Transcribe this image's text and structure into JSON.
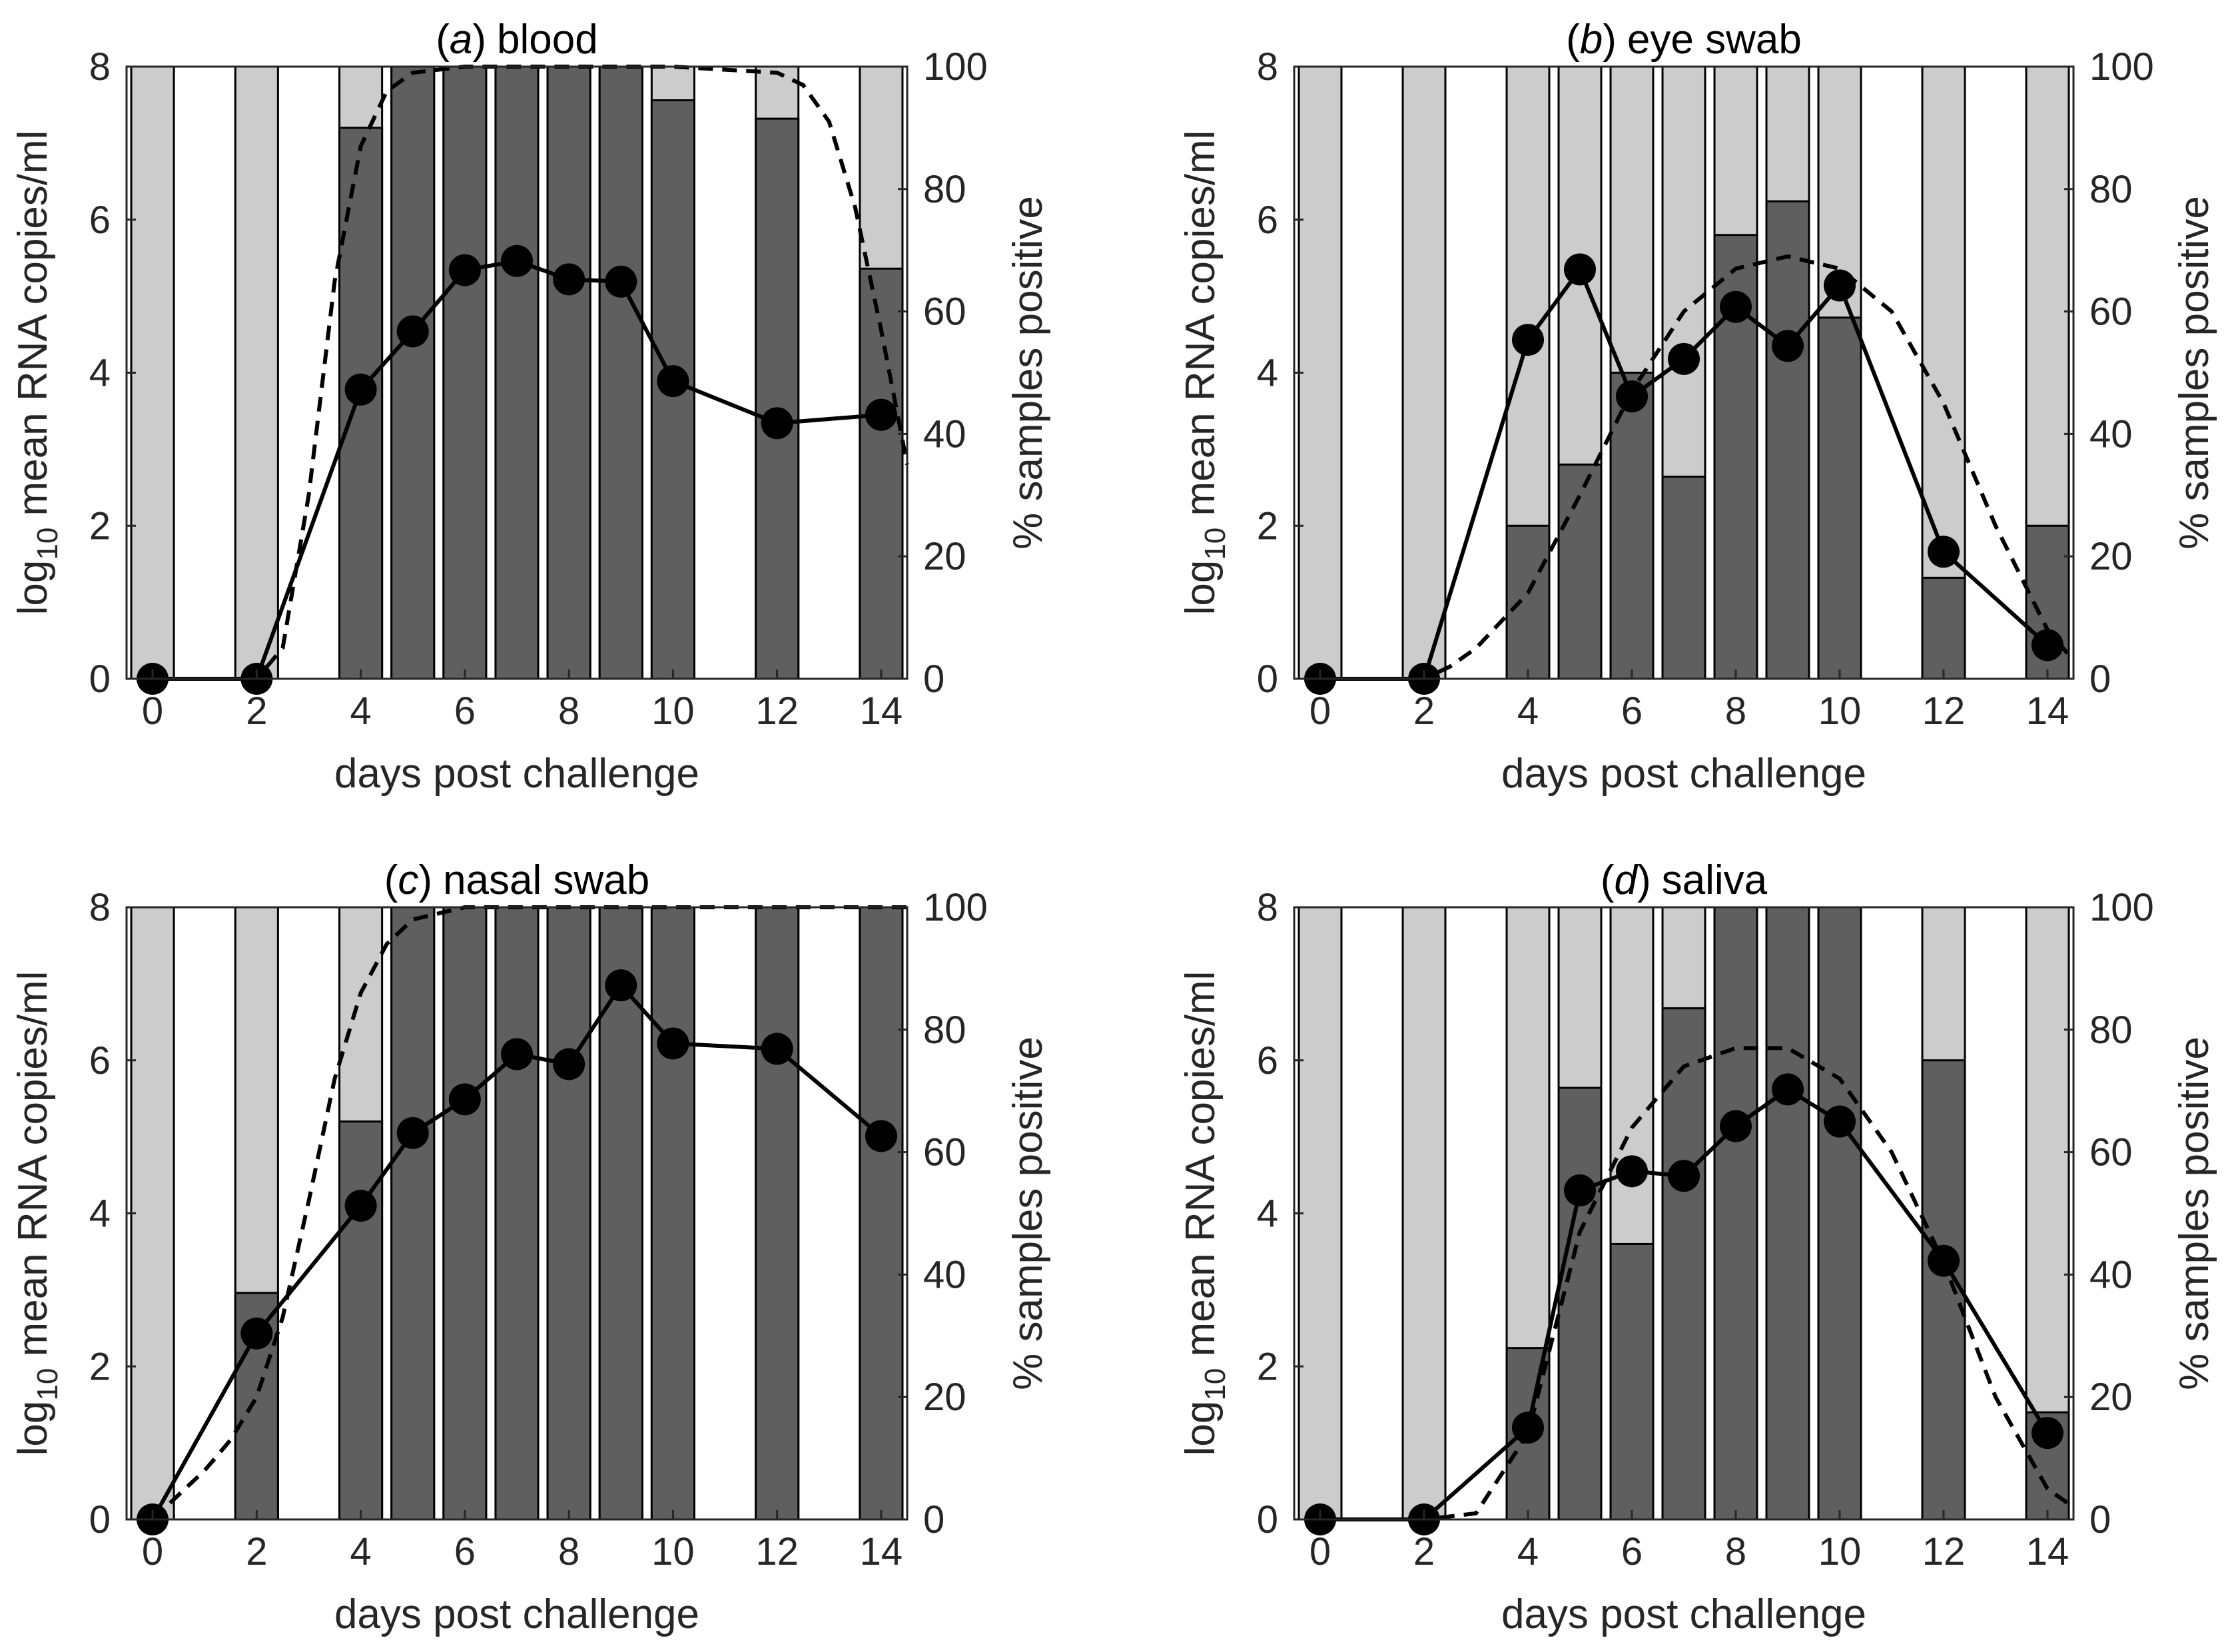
{
  "colors": {
    "bar_light": "#cccccc",
    "bar_dark": "#5f5f5f",
    "bar_edge": "#000000",
    "line": "#000000",
    "axis": "#262626"
  },
  "chart_data": [
    {
      "type": "bar+line",
      "title_prefix": "(",
      "title_letter": "a",
      "title_suffix": ")",
      "title_name": "blood",
      "xlabel": "days post challenge",
      "ylabel_prefix": "log",
      "ylabel_sub": "10",
      "ylabel_suffix": " mean RNA copies/ml",
      "y2label": "% samples positive",
      "xlim": [
        -0.5,
        14.5
      ],
      "ylim": [
        0,
        8
      ],
      "y2lim": [
        0,
        100
      ],
      "xticks": [
        "0",
        "2",
        "4",
        "6",
        "8",
        "10",
        "12",
        "14"
      ],
      "yticks": [
        "0",
        "2",
        "4",
        "6",
        "8"
      ],
      "y2ticks": [
        "0",
        "20",
        "40",
        "60",
        "80",
        "100"
      ],
      "days": [
        0,
        2,
        4,
        5,
        6,
        7,
        8,
        9,
        10,
        12,
        14
      ],
      "percent_positive": [
        0,
        0,
        90,
        100,
        100,
        100,
        100,
        100,
        94.5,
        91.5,
        67
      ],
      "mean_rna": [
        0,
        0,
        3.78,
        4.54,
        5.34,
        5.46,
        5.22,
        5.19,
        3.89,
        3.34,
        3.45
      ],
      "fitted_percent": [
        [
          0,
          0
        ],
        [
          1,
          0
        ],
        [
          2,
          0
        ],
        [
          2.5,
          5
        ],
        [
          3,
          30
        ],
        [
          3.5,
          65
        ],
        [
          4,
          87
        ],
        [
          4.5,
          96
        ],
        [
          5,
          99
        ],
        [
          6,
          100
        ],
        [
          8,
          100
        ],
        [
          10,
          100
        ],
        [
          12,
          99
        ],
        [
          12.5,
          97
        ],
        [
          13,
          91
        ],
        [
          13.5,
          77
        ],
        [
          14,
          57
        ],
        [
          14.5,
          35
        ]
      ]
    },
    {
      "type": "bar+line",
      "title_prefix": "(",
      "title_letter": "b",
      "title_suffix": ")",
      "title_name": "eye swab",
      "xlabel": "days post challenge",
      "ylabel_prefix": "log",
      "ylabel_sub": "10",
      "ylabel_suffix": " mean RNA copies/ml",
      "y2label": "% samples positive",
      "xlim": [
        -0.5,
        14.5
      ],
      "ylim": [
        0,
        8
      ],
      "y2lim": [
        0,
        100
      ],
      "xticks": [
        "0",
        "2",
        "4",
        "6",
        "8",
        "10",
        "12",
        "14"
      ],
      "yticks": [
        "0",
        "2",
        "4",
        "6",
        "8"
      ],
      "y2ticks": [
        "0",
        "20",
        "40",
        "60",
        "80",
        "100"
      ],
      "days": [
        0,
        2,
        4,
        5,
        6,
        7,
        8,
        9,
        10,
        12,
        14
      ],
      "percent_positive": [
        0,
        0,
        25,
        35,
        50,
        33,
        72.5,
        78,
        59,
        16.5,
        25
      ],
      "mean_rna": [
        0,
        0,
        4.43,
        5.35,
        3.69,
        4.18,
        4.86,
        4.35,
        5.14,
        1.66,
        0.44
      ],
      "fitted_percent": [
        [
          0,
          0
        ],
        [
          2,
          0
        ],
        [
          2.5,
          2
        ],
        [
          3,
          5
        ],
        [
          4,
          14
        ],
        [
          5,
          30
        ],
        [
          6,
          47
        ],
        [
          7,
          60
        ],
        [
          8,
          67
        ],
        [
          9,
          69
        ],
        [
          10,
          67
        ],
        [
          11,
          60
        ],
        [
          12,
          45
        ],
        [
          13,
          25
        ],
        [
          14,
          8
        ],
        [
          14.5,
          3
        ]
      ]
    },
    {
      "type": "bar+line",
      "title_prefix": "(",
      "title_letter": "c",
      "title_suffix": ")",
      "title_name": "nasal swab",
      "xlabel": "days post challenge",
      "ylabel_prefix": "log",
      "ylabel_sub": "10",
      "ylabel_suffix": " mean RNA copies/ml",
      "y2label": "% samples positive",
      "xlim": [
        -0.5,
        14.5
      ],
      "ylim": [
        0,
        8
      ],
      "y2lim": [
        0,
        100
      ],
      "xticks": [
        "0",
        "2",
        "4",
        "6",
        "8",
        "10",
        "12",
        "14"
      ],
      "yticks": [
        "0",
        "2",
        "4",
        "6",
        "8"
      ],
      "y2ticks": [
        "0",
        "20",
        "40",
        "60",
        "80",
        "100"
      ],
      "days": [
        0,
        2,
        4,
        5,
        6,
        7,
        8,
        9,
        10,
        12,
        14
      ],
      "percent_positive": [
        0,
        37,
        65,
        100,
        100,
        100,
        100,
        100,
        100,
        100,
        100
      ],
      "mean_rna": [
        0,
        2.43,
        4.1,
        5.05,
        5.49,
        6.08,
        5.95,
        6.98,
        6.22,
        6.15,
        5.01
      ],
      "fitted_percent": [
        [
          0,
          0
        ],
        [
          0.5,
          4
        ],
        [
          1,
          8
        ],
        [
          1.5,
          13
        ],
        [
          2,
          20
        ],
        [
          2.5,
          33
        ],
        [
          3,
          52
        ],
        [
          3.5,
          72
        ],
        [
          4,
          86
        ],
        [
          4.5,
          94
        ],
        [
          5,
          98
        ],
        [
          5.5,
          99
        ],
        [
          6,
          100
        ],
        [
          8,
          100
        ],
        [
          10,
          100
        ],
        [
          12,
          100
        ],
        [
          14.5,
          100
        ]
      ]
    },
    {
      "type": "bar+line",
      "title_prefix": "(",
      "title_letter": "d",
      "title_suffix": ")",
      "title_name": "saliva",
      "xlabel": "days post challenge",
      "ylabel_prefix": "log",
      "ylabel_sub": "10",
      "ylabel_suffix": " mean RNA copies/ml",
      "y2label": "% samples positive",
      "xlim": [
        -0.5,
        14.5
      ],
      "ylim": [
        0,
        8
      ],
      "y2lim": [
        0,
        100
      ],
      "xticks": [
        "0",
        "2",
        "4",
        "6",
        "8",
        "10",
        "12",
        "14"
      ],
      "yticks": [
        "0",
        "2",
        "4",
        "6",
        "8"
      ],
      "y2ticks": [
        "0",
        "20",
        "40",
        "60",
        "80",
        "100"
      ],
      "days": [
        0,
        2,
        4,
        5,
        6,
        7,
        8,
        9,
        10,
        12,
        14
      ],
      "percent_positive": [
        0,
        0,
        28,
        70.5,
        45,
        83.5,
        100,
        100,
        100,
        75,
        17.5
      ],
      "mean_rna": [
        0,
        0,
        1.2,
        4.3,
        4.55,
        4.49,
        5.14,
        5.62,
        5.2,
        3.38,
        1.13
      ],
      "fitted_percent": [
        [
          0,
          0
        ],
        [
          2,
          0
        ],
        [
          3,
          1
        ],
        [
          4,
          14
        ],
        [
          5,
          47
        ],
        [
          6,
          64
        ],
        [
          7,
          74
        ],
        [
          8,
          77
        ],
        [
          9,
          77
        ],
        [
          10,
          72
        ],
        [
          11,
          60
        ],
        [
          12,
          42
        ],
        [
          13,
          20
        ],
        [
          14,
          5
        ],
        [
          14.5,
          2
        ]
      ]
    }
  ]
}
